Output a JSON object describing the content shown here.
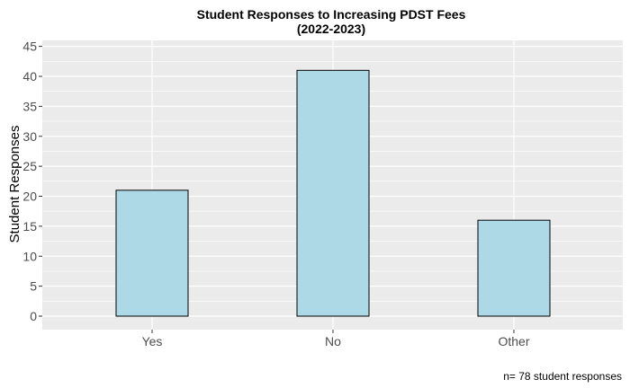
{
  "chart_data": {
    "type": "bar",
    "title": "Student Responses to Increasing PDST Fees",
    "subtitle": "(2022-2023)",
    "categories": [
      "Yes",
      "No",
      "Other"
    ],
    "values": [
      21,
      41,
      16
    ],
    "xlabel": "",
    "ylabel": "Student Responses",
    "ylim": [
      0,
      45
    ],
    "yticks": [
      0,
      5,
      10,
      15,
      20,
      25,
      30,
      35,
      40,
      45
    ],
    "grid": true,
    "legend": "none",
    "caption": "n= 78 student responses",
    "colors": {
      "bar_fill": "#add8e6",
      "bar_stroke": "#000000",
      "panel_background": "#ebebeb",
      "grid": "#ffffff"
    }
  }
}
